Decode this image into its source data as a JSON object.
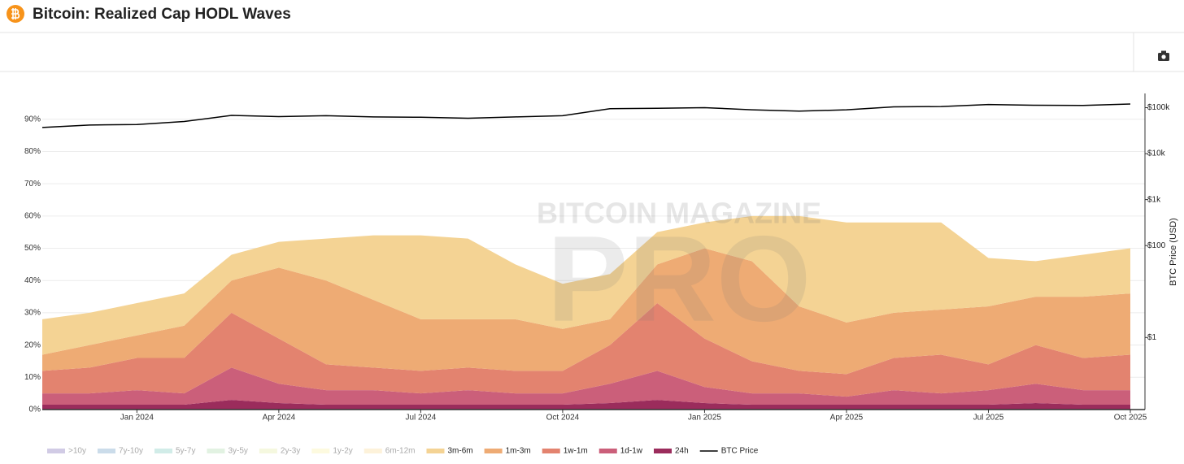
{
  "chart_data": {
    "type": "area",
    "stacked": true,
    "title": "Bitcoin: Realized Cap HODL Waves",
    "watermark": [
      "BITCOIN MAGAZINE",
      "PRO"
    ],
    "y2label": "BTC Price (USD)",
    "x": [
      "2023-11",
      "2023-12",
      "2024-01",
      "2024-02",
      "2024-03",
      "2024-04",
      "2024-05",
      "2024-06",
      "2024-07",
      "2024-08",
      "2024-09",
      "2024-10",
      "2024-11",
      "2024-12",
      "2025-01",
      "2025-02",
      "2025-03",
      "2025-04",
      "2025-05",
      "2025-06",
      "2025-07",
      "2025-08",
      "2025-09",
      "2025-10"
    ],
    "xlim": [
      "2023-11",
      "2025-10"
    ],
    "xticks": [
      {
        "value": "2024-01",
        "label": "Jan 2024"
      },
      {
        "value": "2024-04",
        "label": "Apr 2024"
      },
      {
        "value": "2024-07",
        "label": "Jul 2024"
      },
      {
        "value": "2024-10",
        "label": "Oct 2024"
      },
      {
        "value": "2025-01",
        "label": "Jan 2025"
      },
      {
        "value": "2025-04",
        "label": "Apr 2025"
      },
      {
        "value": "2025-07",
        "label": "Jul 2025"
      },
      {
        "value": "2025-10",
        "label": "Oct 2025"
      }
    ],
    "ylim": [
      0,
      98
    ],
    "yticks": [
      {
        "value": 0,
        "label": "0%"
      },
      {
        "value": 10,
        "label": "10%"
      },
      {
        "value": 20,
        "label": "20%"
      },
      {
        "value": 30,
        "label": "30%"
      },
      {
        "value": 40,
        "label": "40%"
      },
      {
        "value": 50,
        "label": "50%"
      },
      {
        "value": 60,
        "label": "60%"
      },
      {
        "value": 70,
        "label": "70%"
      },
      {
        "value": 80,
        "label": "80%"
      },
      {
        "value": 90,
        "label": "90%"
      }
    ],
    "y2log": true,
    "y2lim": [
      0.027,
      204000
    ],
    "y2ticks": [
      {
        "value": 1,
        "label": "$1"
      },
      {
        "value": 100,
        "label": "$100"
      },
      {
        "value": 1000,
        "label": "$1k"
      },
      {
        "value": 10000,
        "label": "$10k"
      },
      {
        "value": 100000,
        "label": "$100k"
      }
    ],
    "grid": true,
    "legend": "bottom",
    "series": [
      {
        "name": ">10y",
        "color": "#b3a9d4",
        "visible": false
      },
      {
        "name": "7y-10y",
        "color": "#a9c4dc",
        "visible": false
      },
      {
        "name": "5y-7y",
        "color": "#b3e0d8",
        "visible": false
      },
      {
        "name": "3y-5y",
        "color": "#cfe9cf",
        "visible": false
      },
      {
        "name": "2y-3y",
        "color": "#eef3c9",
        "visible": false
      },
      {
        "name": "1y-2y",
        "color": "#fcf6c9",
        "visible": false
      },
      {
        "name": "6m-12m",
        "color": "#fbe9c2",
        "visible": false
      },
      {
        "name": "3m-6m",
        "color": "#f4d394",
        "visible": true,
        "values": [
          11,
          10,
          10,
          10,
          8,
          8,
          13,
          20,
          26,
          25,
          17,
          14,
          14,
          10,
          8,
          14,
          28,
          31,
          28,
          27,
          15,
          11,
          13,
          14
        ]
      },
      {
        "name": "1m-3m",
        "color": "#eeab74",
        "visible": true,
        "values": [
          5,
          7,
          7,
          10,
          10,
          22,
          26,
          21,
          16,
          15,
          16,
          13,
          8,
          12,
          28,
          31,
          20,
          16,
          14,
          14,
          18,
          15,
          19,
          19
        ]
      },
      {
        "name": "1w-1m",
        "color": "#e3836f",
        "visible": true,
        "values": [
          7,
          8,
          10,
          11,
          17,
          14,
          8,
          7,
          7,
          7,
          7,
          7,
          12,
          21,
          15,
          10,
          7,
          7,
          10,
          12,
          8,
          12,
          10,
          11
        ]
      },
      {
        "name": "1d-1w",
        "color": "#cb5f7a",
        "visible": true,
        "values": [
          3.5,
          3.5,
          4.5,
          3.5,
          10,
          6,
          4.5,
          4.5,
          3.5,
          4.5,
          3.5,
          3.5,
          6,
          9,
          5,
          3.5,
          3.5,
          2.5,
          4.5,
          3.5,
          4.5,
          6,
          4.5,
          4.5
        ]
      },
      {
        "name": "24h",
        "color": "#9b2c5c",
        "visible": true,
        "values": [
          1.5,
          1.5,
          1.5,
          1.5,
          3,
          2,
          1.5,
          1.5,
          1.5,
          1.5,
          1.5,
          1.5,
          2,
          3,
          2,
          1.5,
          1.5,
          1.5,
          1.5,
          1.5,
          1.5,
          2,
          1.5,
          1.5
        ]
      },
      {
        "name": "BTC Price",
        "color": "#000000",
        "visible": true,
        "axis": "y2",
        "values": [
          37000,
          42000,
          43000,
          50000,
          68000,
          64000,
          67000,
          63000,
          62000,
          59000,
          63000,
          67000,
          95000,
          97000,
          100000,
          90000,
          84000,
          90000,
          104000,
          106000,
          117000,
          113000,
          112000,
          120000
        ]
      }
    ]
  }
}
